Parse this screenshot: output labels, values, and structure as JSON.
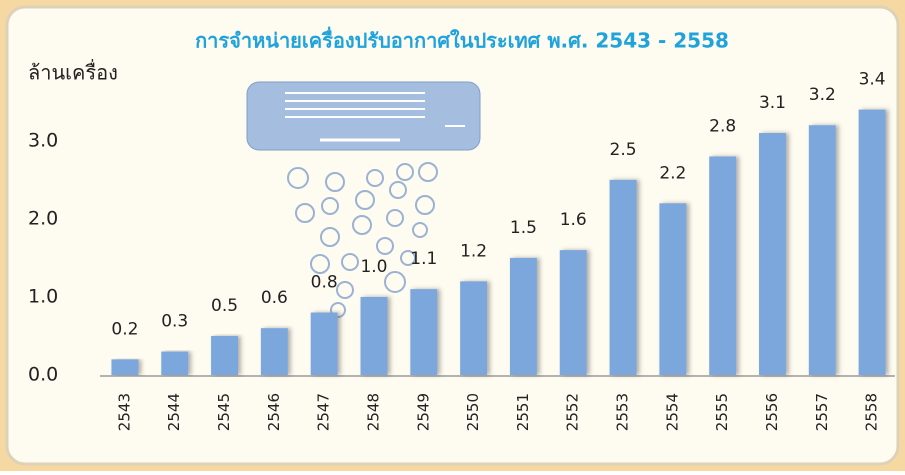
{
  "chart_data": {
    "type": "bar",
    "title": "การจำหน่ายเครื่องปรับอากาศในประเทศ พ.ศ. 2543 - 2558",
    "y_label": "ล้านเครื่อง",
    "categories": [
      "2543",
      "2544",
      "2545",
      "2546",
      "2547",
      "2548",
      "2549",
      "2550",
      "2551",
      "2552",
      "2553",
      "2554",
      "2555",
      "2556",
      "2557",
      "2558"
    ],
    "values": [
      0.2,
      0.3,
      0.5,
      0.6,
      0.8,
      1.0,
      1.1,
      1.2,
      1.5,
      1.6,
      2.5,
      2.2,
      2.8,
      3.1,
      3.2,
      3.4
    ],
    "value_labels": [
      "0.2",
      "0.3",
      "0.5",
      "0.6",
      "0.8",
      "1.0",
      "1.1",
      "1.2",
      "1.5",
      "1.6",
      "2.5",
      "2.2",
      "2.8",
      "3.1",
      "3.2",
      "3.4"
    ],
    "color": "#7ba7dd",
    "ylim": [
      0,
      3.6
    ],
    "yticks": [
      {
        "value": 0,
        "label": "0.0"
      },
      {
        "value": 1,
        "label": "1.0"
      },
      {
        "value": 2,
        "label": "2.0"
      },
      {
        "value": 3,
        "label": "3.0"
      }
    ],
    "grid": false
  }
}
